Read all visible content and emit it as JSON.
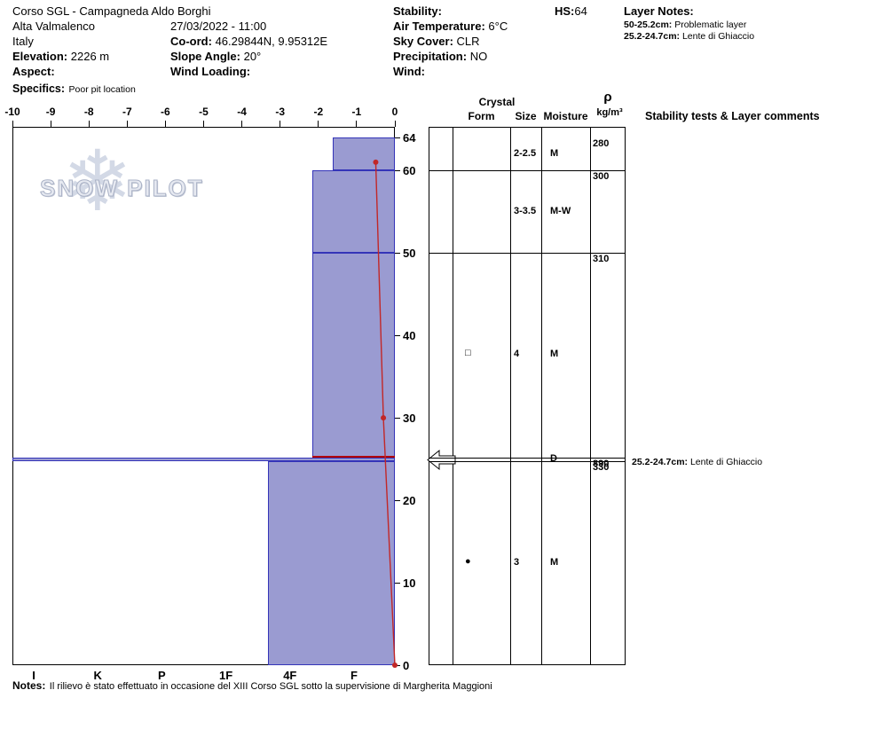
{
  "header": {
    "title": "Corso SGL - Campagneda Aldo Borghi",
    "location": "Alta Valmalenco",
    "country": "Italy",
    "datetime": "27/03/2022 - 11:00",
    "coord_label": "Co-ord:",
    "coord_value": "46.29844N, 9.95312E",
    "elevation_label": "Elevation:",
    "elevation_value": "2226 m",
    "slope_label": "Slope Angle:",
    "slope_value": "20°",
    "aspect_label": "Aspect:",
    "wind_loading_label": "Wind Loading:",
    "specifics_label": "Specifics:",
    "specifics_value": "Poor pit location",
    "stability_label": "Stability:",
    "air_temp_label": "Air Temperature:",
    "air_temp_value": "6°C",
    "sky_label": "Sky Cover:",
    "sky_value": "CLR",
    "precip_label": "Precipitation:",
    "precip_value": "NO",
    "wind_label": "Wind:",
    "hs_label": "HS:",
    "hs_value": "64",
    "layer_notes_label": "Layer Notes:",
    "layer_note_1_range": "50-25.2cm:",
    "layer_note_1_text": "Problematic layer",
    "layer_note_2_range": "25.2-24.7cm:",
    "layer_note_2_text": "Lente di Ghiaccio"
  },
  "watermark": {
    "text": "SNOW PILOT",
    "flake": "❄"
  },
  "chart_data": {
    "type": "snow-profile-bar",
    "title": "Snow hardness / temperature profile",
    "temp_axis": {
      "min": -10,
      "max": 0,
      "ticks": [
        -10,
        -9,
        -8,
        -7,
        -6,
        -5,
        -4,
        -3,
        -2,
        -1,
        0
      ]
    },
    "depth_axis": {
      "min": 0,
      "max": 64,
      "ticks": [
        0,
        10,
        20,
        30,
        40,
        50,
        60,
        64
      ],
      "unit": "cm"
    },
    "hardness_ticks": [
      "I",
      "K",
      "P",
      "1F",
      "4F",
      "F"
    ],
    "layers": [
      {
        "top_cm": 64,
        "bottom_cm": 60,
        "hardness": "F+",
        "bar_left_frac": 0.838
      },
      {
        "top_cm": 60,
        "bottom_cm": 50,
        "hardness": "4F-F",
        "bar_left_frac": 0.784
      },
      {
        "top_cm": 50,
        "bottom_cm": 25.2,
        "hardness": "4F-F",
        "bar_left_frac": 0.784
      },
      {
        "top_cm": 25.2,
        "bottom_cm": 24.7,
        "hardness": "I",
        "bar_left_frac": 0.0
      },
      {
        "top_cm": 24.7,
        "bottom_cm": 0,
        "hardness": "1F-4F",
        "bar_left_frac": 0.668
      }
    ],
    "flag_line": {
      "depth_cm": 25.2
    },
    "temperature_profile": [
      {
        "depth_cm": 61,
        "temp_c": -0.5
      },
      {
        "depth_cm": 30,
        "temp_c": -0.3
      },
      {
        "depth_cm": 0,
        "temp_c": 0
      }
    ]
  },
  "table": {
    "header": {
      "crystal": "Crystal",
      "form": "Form",
      "size": "Size",
      "moisture": "Moisture",
      "rho": "ρ",
      "rho_unit": "kg/m³",
      "comments": "Stability tests & Layer comments"
    },
    "rows": [
      {
        "form": "",
        "size": "2-2.5",
        "moisture": "M",
        "density": "280"
      },
      {
        "form": "",
        "size": "3-3.5",
        "moisture": "M-W",
        "density": "300"
      },
      {
        "form": "□",
        "size": "4",
        "moisture": "M",
        "density": "310"
      },
      {
        "form": "",
        "size": "",
        "moisture": "D",
        "density": "890"
      },
      {
        "form": "●",
        "size": "3",
        "moisture": "M",
        "density": "330"
      }
    ],
    "layer_comment_range": "25.2-24.7cm:",
    "layer_comment_text": "Lente di Ghiaccio"
  },
  "notes": {
    "label": "Notes:",
    "text": "Il rilievo è stato effettuato in occasione del XIII Corso SGL sotto la supervisione  di Margherita Maggioni"
  },
  "colors": {
    "bar_fill": "#9a9bd1",
    "bar_stroke": "#3434b8",
    "temp_line": "#c22727",
    "flag_line": "#b00000",
    "watermark": "#ccd3e2"
  }
}
